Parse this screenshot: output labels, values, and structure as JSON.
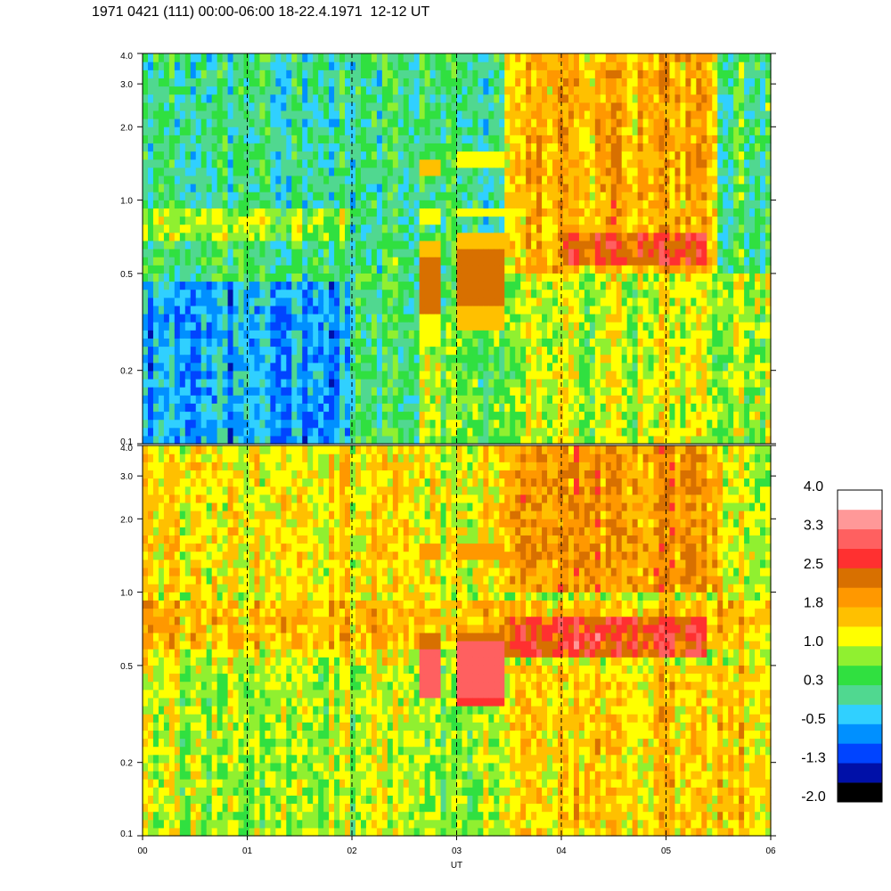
{
  "title": "1971 0421 (111) 00:00-06:00 18-22.4.1971  12-12 UT",
  "chart_data": {
    "type": "heatmap",
    "title": "1971 0421 (111) 00:00-06:00 18-22.4.1971  12-12 UT",
    "xlabel": "UT",
    "ylabel": "",
    "x_range": [
      0,
      6
    ],
    "x_ticks": [
      "00",
      "01",
      "02",
      "03",
      "04",
      "05",
      "06"
    ],
    "vertical_dashed_lines_at_hours": [
      1,
      2,
      3,
      4,
      5
    ],
    "y_scale": "log",
    "y_range": [
      0.1,
      4.0
    ],
    "y_ticks": [
      {
        "value": 0.1,
        "label": "0.1"
      },
      {
        "value": 0.2,
        "label": "0.2"
      },
      {
        "value": 0.5,
        "label": "0.5"
      },
      {
        "value": 1.0,
        "label": "1.0"
      },
      {
        "value": 2.0,
        "label": "2.0"
      },
      {
        "value": 3.0,
        "label": "3.0"
      },
      {
        "value": 4.0,
        "label": "4.0"
      }
    ],
    "panels": [
      {
        "name": "",
        "background_level": 0.1,
        "features": [
          {
            "x": [
              0.0,
              2.0
            ],
            "y": [
              0.1,
              0.45
            ],
            "level": -0.5,
            "mode": "noise"
          },
          {
            "x": [
              0.0,
              2.0
            ],
            "y": [
              0.45,
              0.7
            ],
            "level": 0.3,
            "mode": "noise"
          },
          {
            "x": [
              0.0,
              2.0
            ],
            "y": [
              0.7,
              0.9
            ],
            "level": 0.8,
            "mode": "noise"
          },
          {
            "x": [
              2.0,
              2.65
            ],
            "y": [
              0.1,
              0.7
            ],
            "level": 0.2,
            "mode": "noise"
          },
          {
            "x": [
              2.65,
              2.85
            ],
            "y": [
              0.1,
              0.27
            ],
            "level": 0.8,
            "mode": "noise"
          },
          {
            "x": [
              2.85,
              3.0
            ],
            "y": [
              0.1,
              0.35
            ],
            "level": 0.4,
            "mode": "noise"
          },
          {
            "x": [
              3.0,
              3.45
            ],
            "y": [
              0.1,
              0.3
            ],
            "level": 0.6,
            "mode": "noise"
          },
          {
            "x": [
              2.65,
              2.85
            ],
            "y": [
              0.34,
              0.6
            ],
            "level": 2.2,
            "mode": "solid"
          },
          {
            "x": [
              2.65,
              2.85
            ],
            "y": [
              0.6,
              0.7
            ],
            "level": 1.5,
            "mode": "solid"
          },
          {
            "x": [
              3.0,
              3.48
            ],
            "y": [
              0.37,
              0.62
            ],
            "level": 2.2,
            "mode": "solid"
          },
          {
            "x": [
              3.0,
              3.48
            ],
            "y": [
              0.62,
              0.72
            ],
            "level": 1.6,
            "mode": "solid"
          },
          {
            "x": [
              2.65,
              2.85
            ],
            "y": [
              0.26,
              0.34
            ],
            "level": 1.2,
            "mode": "solid"
          },
          {
            "x": [
              3.0,
              3.48
            ],
            "y": [
              0.3,
              0.37
            ],
            "level": 1.5,
            "mode": "solid"
          },
          {
            "x": [
              2.65,
              2.85
            ],
            "y": [
              0.82,
              0.92
            ],
            "level": 1.2,
            "mode": "solid"
          },
          {
            "x": [
              3.0,
              3.48
            ],
            "y": [
              0.85,
              0.95
            ],
            "level": 1.3,
            "mode": "solid"
          },
          {
            "x": [
              2.65,
              2.85
            ],
            "y": [
              1.3,
              1.5
            ],
            "level": 1.4,
            "mode": "solid"
          },
          {
            "x": [
              3.0,
              3.48
            ],
            "y": [
              1.35,
              1.55
            ],
            "level": 1.3,
            "mode": "solid"
          },
          {
            "x": [
              3.48,
              6.0
            ],
            "y": [
              0.1,
              0.5
            ],
            "level": 1.0,
            "mode": "noise"
          },
          {
            "x": [
              3.48,
              5.5
            ],
            "y": [
              0.5,
              4.0
            ],
            "level": 1.7,
            "mode": "noise"
          },
          {
            "x": [
              4.0,
              5.4
            ],
            "y": [
              0.55,
              0.75
            ],
            "level": 2.4,
            "mode": "noise"
          },
          {
            "x": [
              5.5,
              6.0
            ],
            "y": [
              0.5,
              4.0
            ],
            "level": 0.4,
            "mode": "noise"
          }
        ]
      },
      {
        "name": "",
        "background_level": 1.1,
        "features": [
          {
            "x": [
              0.0,
              6.0
            ],
            "y": [
              0.1,
              0.5
            ],
            "level": 0.9,
            "mode": "noise"
          },
          {
            "x": [
              0.0,
              6.0
            ],
            "y": [
              0.6,
              0.95
            ],
            "level": 1.6,
            "mode": "noise"
          },
          {
            "x": [
              0.0,
              3.48
            ],
            "y": [
              1.0,
              4.0
            ],
            "level": 1.3,
            "mode": "noise"
          },
          {
            "x": [
              2.65,
              2.85
            ],
            "y": [
              0.37,
              0.6
            ],
            "level": 3.2,
            "mode": "solid"
          },
          {
            "x": [
              3.0,
              3.48
            ],
            "y": [
              0.38,
              0.62
            ],
            "level": 3.2,
            "mode": "solid"
          },
          {
            "x": [
              3.0,
              3.48
            ],
            "y": [
              0.33,
              0.38
            ],
            "level": 2.5,
            "mode": "solid"
          },
          {
            "x": [
              2.65,
              2.85
            ],
            "y": [
              0.6,
              0.7
            ],
            "level": 2.3,
            "mode": "solid"
          },
          {
            "x": [
              3.0,
              3.48
            ],
            "y": [
              0.62,
              0.7
            ],
            "level": 2.2,
            "mode": "solid"
          },
          {
            "x": [
              2.65,
              2.85
            ],
            "y": [
              1.35,
              1.55
            ],
            "level": 2.1,
            "mode": "solid"
          },
          {
            "x": [
              3.0,
              3.48
            ],
            "y": [
              1.35,
              1.55
            ],
            "level": 2.1,
            "mode": "solid"
          },
          {
            "x": [
              3.48,
              5.5
            ],
            "y": [
              1.0,
              4.0
            ],
            "level": 2.0,
            "mode": "noise"
          },
          {
            "x": [
              3.48,
              5.4
            ],
            "y": [
              0.55,
              0.8
            ],
            "level": 2.6,
            "mode": "noise"
          },
          {
            "x": [
              3.48,
              6.0
            ],
            "y": [
              0.1,
              0.5
            ],
            "level": 1.5,
            "mode": "noise"
          }
        ]
      }
    ],
    "colorbar": {
      "range": [
        -2.0,
        4.0
      ],
      "labels": [
        "4.0",
        "3.3",
        "2.5",
        "1.8",
        "1.0",
        "0.3",
        "-0.5",
        "-1.3",
        "-2.0"
      ],
      "colors": [
        "#000000",
        "#0010a8",
        "#0044ff",
        "#0090ff",
        "#30d0ff",
        "#50d890",
        "#30e040",
        "#90f030",
        "#ffff00",
        "#ffc000",
        "#ff9800",
        "#d87000",
        "#ff3030",
        "#ff6060",
        "#ff9898",
        "#ffffff"
      ]
    }
  }
}
